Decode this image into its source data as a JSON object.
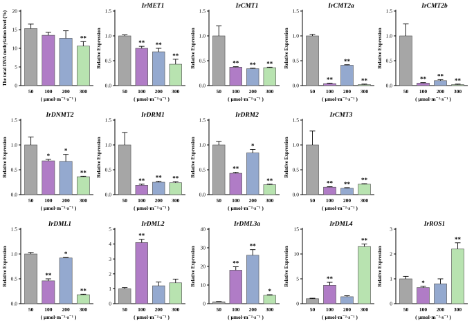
{
  "colors": {
    "50": "#a6a6a6",
    "100": "#b07cc6",
    "200": "#94a9cf",
    "300": "#b8e3b0",
    "axis": "#000000",
    "error": "#000000"
  },
  "unit_text": "( μmol·m⁻²·s⁻¹ )",
  "chart_data": [
    {
      "type": "bar",
      "title": "",
      "ylabel": "The total DNA methylation level (%)",
      "ylim": [
        0,
        20
      ],
      "yticks": [
        0,
        5,
        10,
        15,
        20
      ],
      "categories": [
        "50",
        "100",
        "200",
        "300"
      ],
      "values": [
        15.3,
        13.5,
        12.7,
        10.6
      ],
      "errors": [
        1.2,
        0.8,
        2.0,
        1.2
      ],
      "sig": [
        "",
        "",
        "",
        "**"
      ],
      "xlabel": "( μmol·m⁻²·s⁻¹ )"
    },
    {
      "type": "bar",
      "title": "IrMET1",
      "ylabel": "Relative Expression",
      "ylim": [
        0,
        1.5
      ],
      "yticks": [
        0,
        0.5,
        1.0,
        1.5
      ],
      "categories": [
        "50",
        "100",
        "200",
        "300"
      ],
      "values": [
        1.0,
        0.75,
        0.68,
        0.43
      ],
      "errors": [
        0.02,
        0.04,
        0.07,
        0.1
      ],
      "sig": [
        "",
        "**",
        "**",
        "**"
      ],
      "xlabel": "( μmol·m⁻²·s⁻¹ )"
    },
    {
      "type": "bar",
      "title": "IrCMT1",
      "ylabel": "Relative Expression",
      "ylim": [
        0,
        1.5
      ],
      "yticks": [
        0,
        0.5,
        1.0,
        1.5
      ],
      "categories": [
        "50",
        "100",
        "200",
        "300"
      ],
      "values": [
        1.0,
        0.37,
        0.34,
        0.36
      ],
      "errors": [
        0.2,
        0.01,
        0.01,
        0.01
      ],
      "sig": [
        "",
        "**",
        "**",
        "**"
      ],
      "xlabel": "( μmol·m⁻²·s⁻¹ )"
    },
    {
      "type": "bar",
      "title": "IrCMT2a",
      "ylabel": "Relative Expression",
      "ylim": [
        0,
        1.5
      ],
      "yticks": [
        0,
        0.5,
        1.0,
        1.5
      ],
      "categories": [
        "50",
        "100",
        "200",
        "300"
      ],
      "values": [
        1.0,
        0.04,
        0.41,
        0.02
      ],
      "errors": [
        0.03,
        0.01,
        0.01,
        0.01
      ],
      "sig": [
        "",
        "**",
        "**",
        "**"
      ],
      "xlabel": "( μmol·m⁻²·s⁻¹ )"
    },
    {
      "type": "bar",
      "title": "IrCMT2b",
      "ylabel": "Relative Expression",
      "ylim": [
        0,
        1.5
      ],
      "yticks": [
        0,
        0.5,
        1.0,
        1.5
      ],
      "categories": [
        "50",
        "100",
        "200",
        "300"
      ],
      "values": [
        1.0,
        0.05,
        0.1,
        0.02
      ],
      "errors": [
        0.24,
        0.01,
        0.02,
        0.01
      ],
      "sig": [
        "",
        "**",
        "**",
        "**"
      ],
      "xlabel": "( μmol·m⁻²·s⁻¹ )"
    },
    {
      "type": "bar",
      "title": "IrDNMT2",
      "ylabel": "Relative Expression",
      "ylim": [
        0,
        1.5
      ],
      "yticks": [
        0,
        0.5,
        1.0,
        1.5
      ],
      "categories": [
        "50",
        "100",
        "200",
        "300"
      ],
      "values": [
        1.0,
        0.68,
        0.67,
        0.36
      ],
      "errors": [
        0.16,
        0.03,
        0.14,
        0.01
      ],
      "sig": [
        "",
        "*",
        "*",
        "**"
      ],
      "xlabel": "( μmol·m⁻²·s⁻¹ )"
    },
    {
      "type": "bar",
      "title": "IrDRM1",
      "ylabel": "Relative Expression",
      "ylim": [
        0,
        1.5
      ],
      "yticks": [
        0,
        0.5,
        1.0,
        1.5
      ],
      "categories": [
        "50",
        "100",
        "200",
        "300"
      ],
      "values": [
        1.0,
        0.19,
        0.25,
        0.24
      ],
      "errors": [
        0.25,
        0.02,
        0.02,
        0.02
      ],
      "sig": [
        "",
        "**",
        "**",
        "**"
      ],
      "xlabel": "( μmol·m⁻²·s⁻¹ )"
    },
    {
      "type": "bar",
      "title": "IrDRM2",
      "ylabel": "Relative Expression",
      "ylim": [
        0,
        1.5
      ],
      "yticks": [
        0,
        0.5,
        1.0,
        1.5
      ],
      "categories": [
        "50",
        "100",
        "200",
        "300"
      ],
      "values": [
        1.0,
        0.43,
        0.84,
        0.2
      ],
      "errors": [
        0.07,
        0.02,
        0.07,
        0.01
      ],
      "sig": [
        "",
        "**",
        "*",
        "**"
      ],
      "xlabel": "( μmol·m⁻²·s⁻¹ )"
    },
    {
      "type": "bar",
      "title": "IrCMT3",
      "ylabel": "Relative Expression",
      "ylim": [
        0,
        1.5
      ],
      "yticks": [
        0,
        0.5,
        1.0,
        1.5
      ],
      "categories": [
        "50",
        "100",
        "200",
        "300"
      ],
      "values": [
        1.0,
        0.15,
        0.13,
        0.21
      ],
      "errors": [
        0.28,
        0.01,
        0.01,
        0.01
      ],
      "sig": [
        "",
        "**",
        "**",
        "**"
      ],
      "xlabel": "( μmol·m⁻²·s⁻¹ )"
    },
    {
      "type": "bar",
      "title": "IrDML1",
      "ylabel": "Relative Expression",
      "ylim": [
        0,
        1.5
      ],
      "yticks": [
        0,
        0.5,
        1.0,
        1.5
      ],
      "categories": [
        "50",
        "100",
        "200",
        "300"
      ],
      "values": [
        1.0,
        0.46,
        0.92,
        0.18
      ],
      "errors": [
        0.03,
        0.04,
        0.01,
        0.01
      ],
      "sig": [
        "",
        "**",
        "*",
        "**"
      ],
      "xlabel": "( μmol·m⁻²·s⁻¹ )"
    },
    {
      "type": "bar",
      "title": "IrDML2",
      "ylabel": "",
      "ylim": [
        0,
        5
      ],
      "yticks": [
        0,
        1,
        2,
        3,
        4,
        5
      ],
      "categories": [
        "50",
        "100",
        "200",
        "300"
      ],
      "values": [
        1.0,
        4.1,
        1.2,
        1.4
      ],
      "errors": [
        0.08,
        0.22,
        0.25,
        0.25
      ],
      "sig": [
        "",
        "**",
        "",
        ""
      ],
      "xlabel": "( μmol·m⁻²·s⁻¹ )"
    },
    {
      "type": "bar",
      "title": "IrDML3a",
      "ylabel": "Relative Expression",
      "ylim": [
        0,
        40
      ],
      "yticks": [
        0,
        10,
        20,
        30,
        40
      ],
      "categories": [
        "50",
        "100",
        "200",
        "300"
      ],
      "values": [
        1.0,
        18.0,
        26.0,
        4.5
      ],
      "errors": [
        0.2,
        1.8,
        3.0,
        0.3
      ],
      "sig": [
        "",
        "**",
        "**",
        "*"
      ],
      "xlabel": "( μmol·m⁻²·s⁻¹ )"
    },
    {
      "type": "bar",
      "title": "IrDML4",
      "ylabel": "Relative Expression",
      "ylim": [
        0,
        15
      ],
      "yticks": [
        0,
        5,
        10,
        15
      ],
      "categories": [
        "50",
        "100",
        "200",
        "300"
      ],
      "values": [
        1.0,
        3.7,
        1.4,
        11.5
      ],
      "errors": [
        0.1,
        0.6,
        0.2,
        0.5
      ],
      "sig": [
        "",
        "**",
        "",
        "**"
      ],
      "xlabel": "( μmol·m⁻²·s⁻¹ )"
    },
    {
      "type": "bar",
      "title": "IrROS1",
      "ylabel": "Relative Expression",
      "ylim": [
        0,
        3
      ],
      "yticks": [
        0,
        1,
        2,
        3
      ],
      "categories": [
        "50",
        "100",
        "200",
        "300"
      ],
      "values": [
        1.0,
        0.65,
        0.8,
        2.2
      ],
      "errors": [
        0.1,
        0.05,
        0.2,
        0.25
      ],
      "sig": [
        "",
        "*",
        "",
        "**"
      ],
      "xlabel": "( μmol·m⁻²·s⁻¹ )"
    }
  ]
}
